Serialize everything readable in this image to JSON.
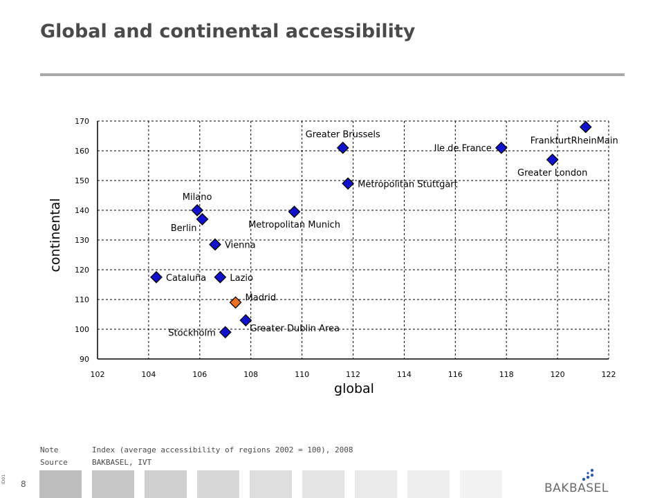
{
  "page": {
    "title": "Global and continental accessibility",
    "page_number": "8",
    "side_code": "ID01",
    "logo_text": "BAKBASEL"
  },
  "notes": [
    {
      "key": "Note",
      "value": "Index (average accessibility of regions 2002 = 100), 2008"
    },
    {
      "key": "Source",
      "value": "BAKBASEL, IVT"
    }
  ],
  "colors": {
    "point": "#1010d0",
    "highlight": "#f07020",
    "grid": "#000000",
    "tiles": [
      "#bdbdbd",
      "#c6c6c6",
      "#cfcfcf",
      "#d7d7d7",
      "#dedede",
      "#e4e4e4",
      "#eaeaea",
      "#eeeeee",
      "#f2f2f2"
    ],
    "logo_text": "#6a6a6a",
    "logo_dots": "#2a5ab0"
  },
  "chart_data": {
    "type": "scatter",
    "title": "",
    "xlabel": "global",
    "ylabel": "continental",
    "xlim": [
      102,
      122
    ],
    "ylim": [
      90,
      170
    ],
    "xticks": [
      102,
      104,
      106,
      108,
      110,
      112,
      114,
      116,
      118,
      120,
      122
    ],
    "yticks": [
      90,
      100,
      110,
      120,
      130,
      140,
      150,
      160,
      170
    ],
    "grid": true,
    "points": [
      {
        "label": "FrankfurtRheinMain",
        "x": 121.1,
        "y": 168,
        "highlight": false,
        "label_pos": "below-left"
      },
      {
        "label": "Ile de France",
        "x": 117.8,
        "y": 161,
        "highlight": false,
        "label_pos": "left"
      },
      {
        "label": "Greater London",
        "x": 119.8,
        "y": 157,
        "highlight": false,
        "label_pos": "below"
      },
      {
        "label": "Greater Brussels",
        "x": 111.6,
        "y": 161,
        "highlight": false,
        "label_pos": "above"
      },
      {
        "label": "Metropolitan Stuttgart",
        "x": 111.8,
        "y": 149,
        "highlight": false,
        "label_pos": "right"
      },
      {
        "label": "Metropolitan Munich",
        "x": 109.7,
        "y": 139.5,
        "highlight": false,
        "label_pos": "below"
      },
      {
        "label": "Milano",
        "x": 105.9,
        "y": 140,
        "highlight": false,
        "label_pos": "above"
      },
      {
        "label": "Berlin",
        "x": 106.1,
        "y": 137,
        "highlight": false,
        "label_pos": "below-left"
      },
      {
        "label": "Vienna",
        "x": 106.6,
        "y": 128.5,
        "highlight": false,
        "label_pos": "right"
      },
      {
        "label": "Cataluña",
        "x": 104.3,
        "y": 117.5,
        "highlight": false,
        "label_pos": "right"
      },
      {
        "label": "Lazio",
        "x": 106.8,
        "y": 117.5,
        "highlight": false,
        "label_pos": "right"
      },
      {
        "label": "Madrid",
        "x": 107.4,
        "y": 109,
        "highlight": true,
        "label_pos": "above-right"
      },
      {
        "label": "Greater Dublin Area",
        "x": 107.8,
        "y": 103,
        "highlight": false,
        "label_pos": "below-right"
      },
      {
        "label": "Stockholm",
        "x": 107.0,
        "y": 99,
        "highlight": false,
        "label_pos": "left"
      }
    ]
  }
}
